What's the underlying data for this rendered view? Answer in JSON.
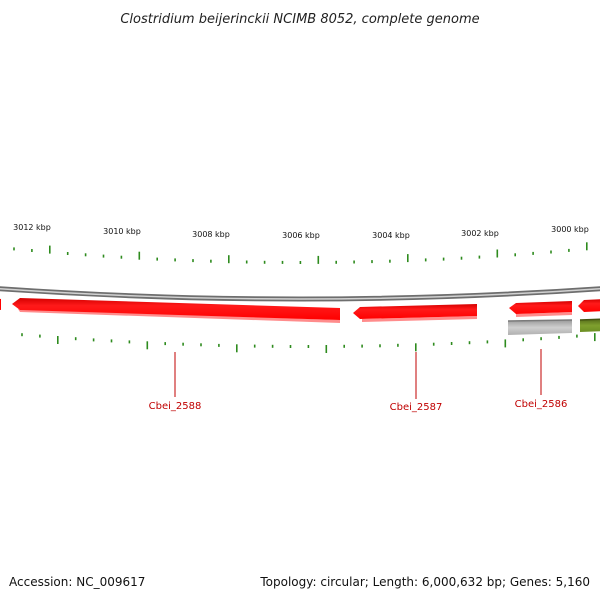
{
  "title": "Clostridium beijerinckii NCIMB 8052, complete genome",
  "footer": {
    "accession": "Accession: NC_009617",
    "summary": "Topology: circular; Length: 6,000,632 bp; Genes: 5,160"
  },
  "colors": {
    "background": "#ffffff",
    "backbone": "#8a8a8a",
    "forward_ticks": "#2e8b1e",
    "cds": "#ff0000",
    "cds_shadow": "#ff8c8c",
    "rna_gray": "#b4b4b4",
    "olive_feature": "#6b8e23",
    "gene_label": "#c00000"
  },
  "scale": {
    "unit": "kbp",
    "labels": [
      "3012 kbp",
      "3010 kbp",
      "3008 kbp",
      "3006 kbp",
      "3004 kbp",
      "3002 kbp",
      "3000 kbp"
    ]
  },
  "features": [
    {
      "name": "Cbei_2588",
      "strand": "-",
      "type": "CDS",
      "color": "red"
    },
    {
      "name": "Cbei_2587",
      "strand": "-",
      "type": "CDS",
      "color": "red"
    },
    {
      "name": "Cbei_2586",
      "strand": "-",
      "type": "CDS",
      "color": "red"
    }
  ]
}
